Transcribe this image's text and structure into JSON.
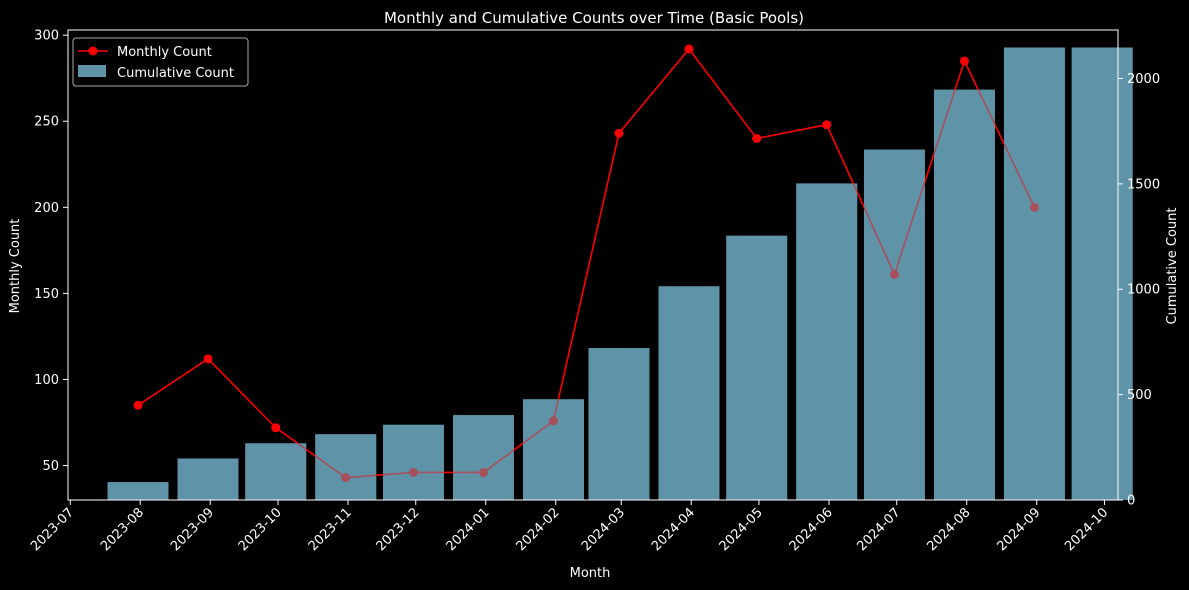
{
  "chart_data": {
    "type": "bar+line",
    "title": "Monthly and Cumulative Counts over Time (Basic Pools)",
    "xlabel": "Month",
    "ylabel_left": "Monthly Count",
    "ylabel_right": "Cumulative Count",
    "x_ticks": [
      "2023-07",
      "2023-08",
      "2023-09",
      "2023-10",
      "2023-11",
      "2023-12",
      "2024-01",
      "2024-02",
      "2024-03",
      "2024-04",
      "2024-05",
      "2024-06",
      "2024-07",
      "2024-08",
      "2024-09",
      "2024-10"
    ],
    "y_left_ticks": [
      50,
      100,
      150,
      200,
      250,
      300
    ],
    "y_right_ticks": [
      0,
      500,
      1000,
      1500,
      2000
    ],
    "ylim_left": [
      30,
      303
    ],
    "ylim_right": [
      0,
      2230
    ],
    "xlim": [
      "2023-06-30",
      "2024-10-07"
    ],
    "legend": {
      "placement": "top-left",
      "entries": [
        "Monthly Count",
        "Cumulative Count"
      ]
    },
    "grid": false,
    "series": [
      {
        "name": "Cumulative Count",
        "type": "bar",
        "color": "#5f93a8",
        "x": [
          "2023-07-31",
          "2023-08-31",
          "2023-09-30",
          "2023-10-31",
          "2023-11-30",
          "2023-12-31",
          "2024-01-31",
          "2024-02-29",
          "2024-03-31",
          "2024-04-30",
          "2024-05-31",
          "2024-06-30",
          "2024-07-31",
          "2024-08-31",
          "2024-09-30"
        ],
        "values": [
          85,
          197,
          269,
          312,
          357,
          403,
          478,
          721,
          1014,
          1254,
          1502,
          1663,
          1947,
          2147,
          2147
        ]
      },
      {
        "name": "Monthly Count",
        "type": "line",
        "color": "#ff0000",
        "marker": "circle",
        "x": [
          "2023-07-31",
          "2023-08-31",
          "2023-09-30",
          "2023-10-31",
          "2023-11-30",
          "2023-12-31",
          "2024-01-31",
          "2024-02-29",
          "2024-03-31",
          "2024-04-30",
          "2024-05-31",
          "2024-06-30",
          "2024-07-31",
          "2024-08-31"
        ],
        "values": [
          85,
          112,
          72,
          43,
          46,
          46,
          76,
          243,
          292,
          240,
          248,
          161,
          285,
          200
        ]
      }
    ]
  },
  "colors": {
    "background": "#000000",
    "line": "#ff0000",
    "bar": "#5f93a8"
  }
}
